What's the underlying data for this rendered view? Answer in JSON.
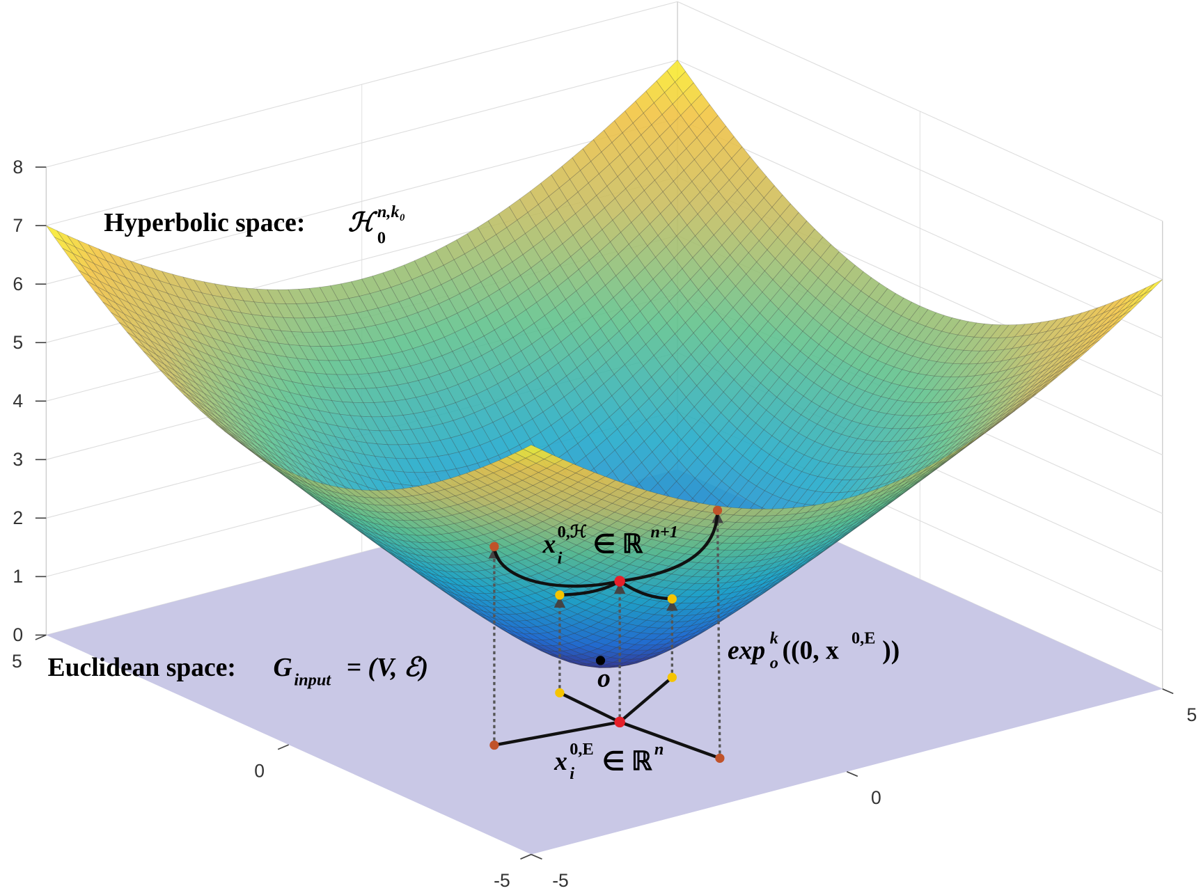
{
  "z_ticks": [
    0,
    1,
    2,
    3,
    4,
    5,
    6,
    7,
    8
  ],
  "x_ticks": [
    5,
    0,
    -5
  ],
  "y_ticks": [
    -5,
    0,
    5
  ],
  "hyperbolic_label": {
    "text": "Hyperbolic space: ",
    "symbol": "ℋ",
    "sup": "n,k₀",
    "sub": "0"
  },
  "euclidean_label": {
    "text": "Euclidean space: ",
    "symbol": "G",
    "sub": "input",
    "rest": " = (V, ℰ)"
  },
  "hyper_point_label": {
    "symbol": "x",
    "sup": "0,ℋ",
    "sub": "i",
    "rest": " ∈ ℝ",
    "rest_sup": "n+1"
  },
  "exp_label": {
    "symbol": "exp",
    "sup": "k",
    "sub": "o",
    "rest": "((0, x",
    "rest_sup": "0,E",
    "end": "))"
  },
  "euclid_point_label": {
    "symbol": "x",
    "sup": "0,E",
    "sub": "i",
    "rest": " ∈ ℝ",
    "rest_sup": "n"
  },
  "origin_label": "o"
}
